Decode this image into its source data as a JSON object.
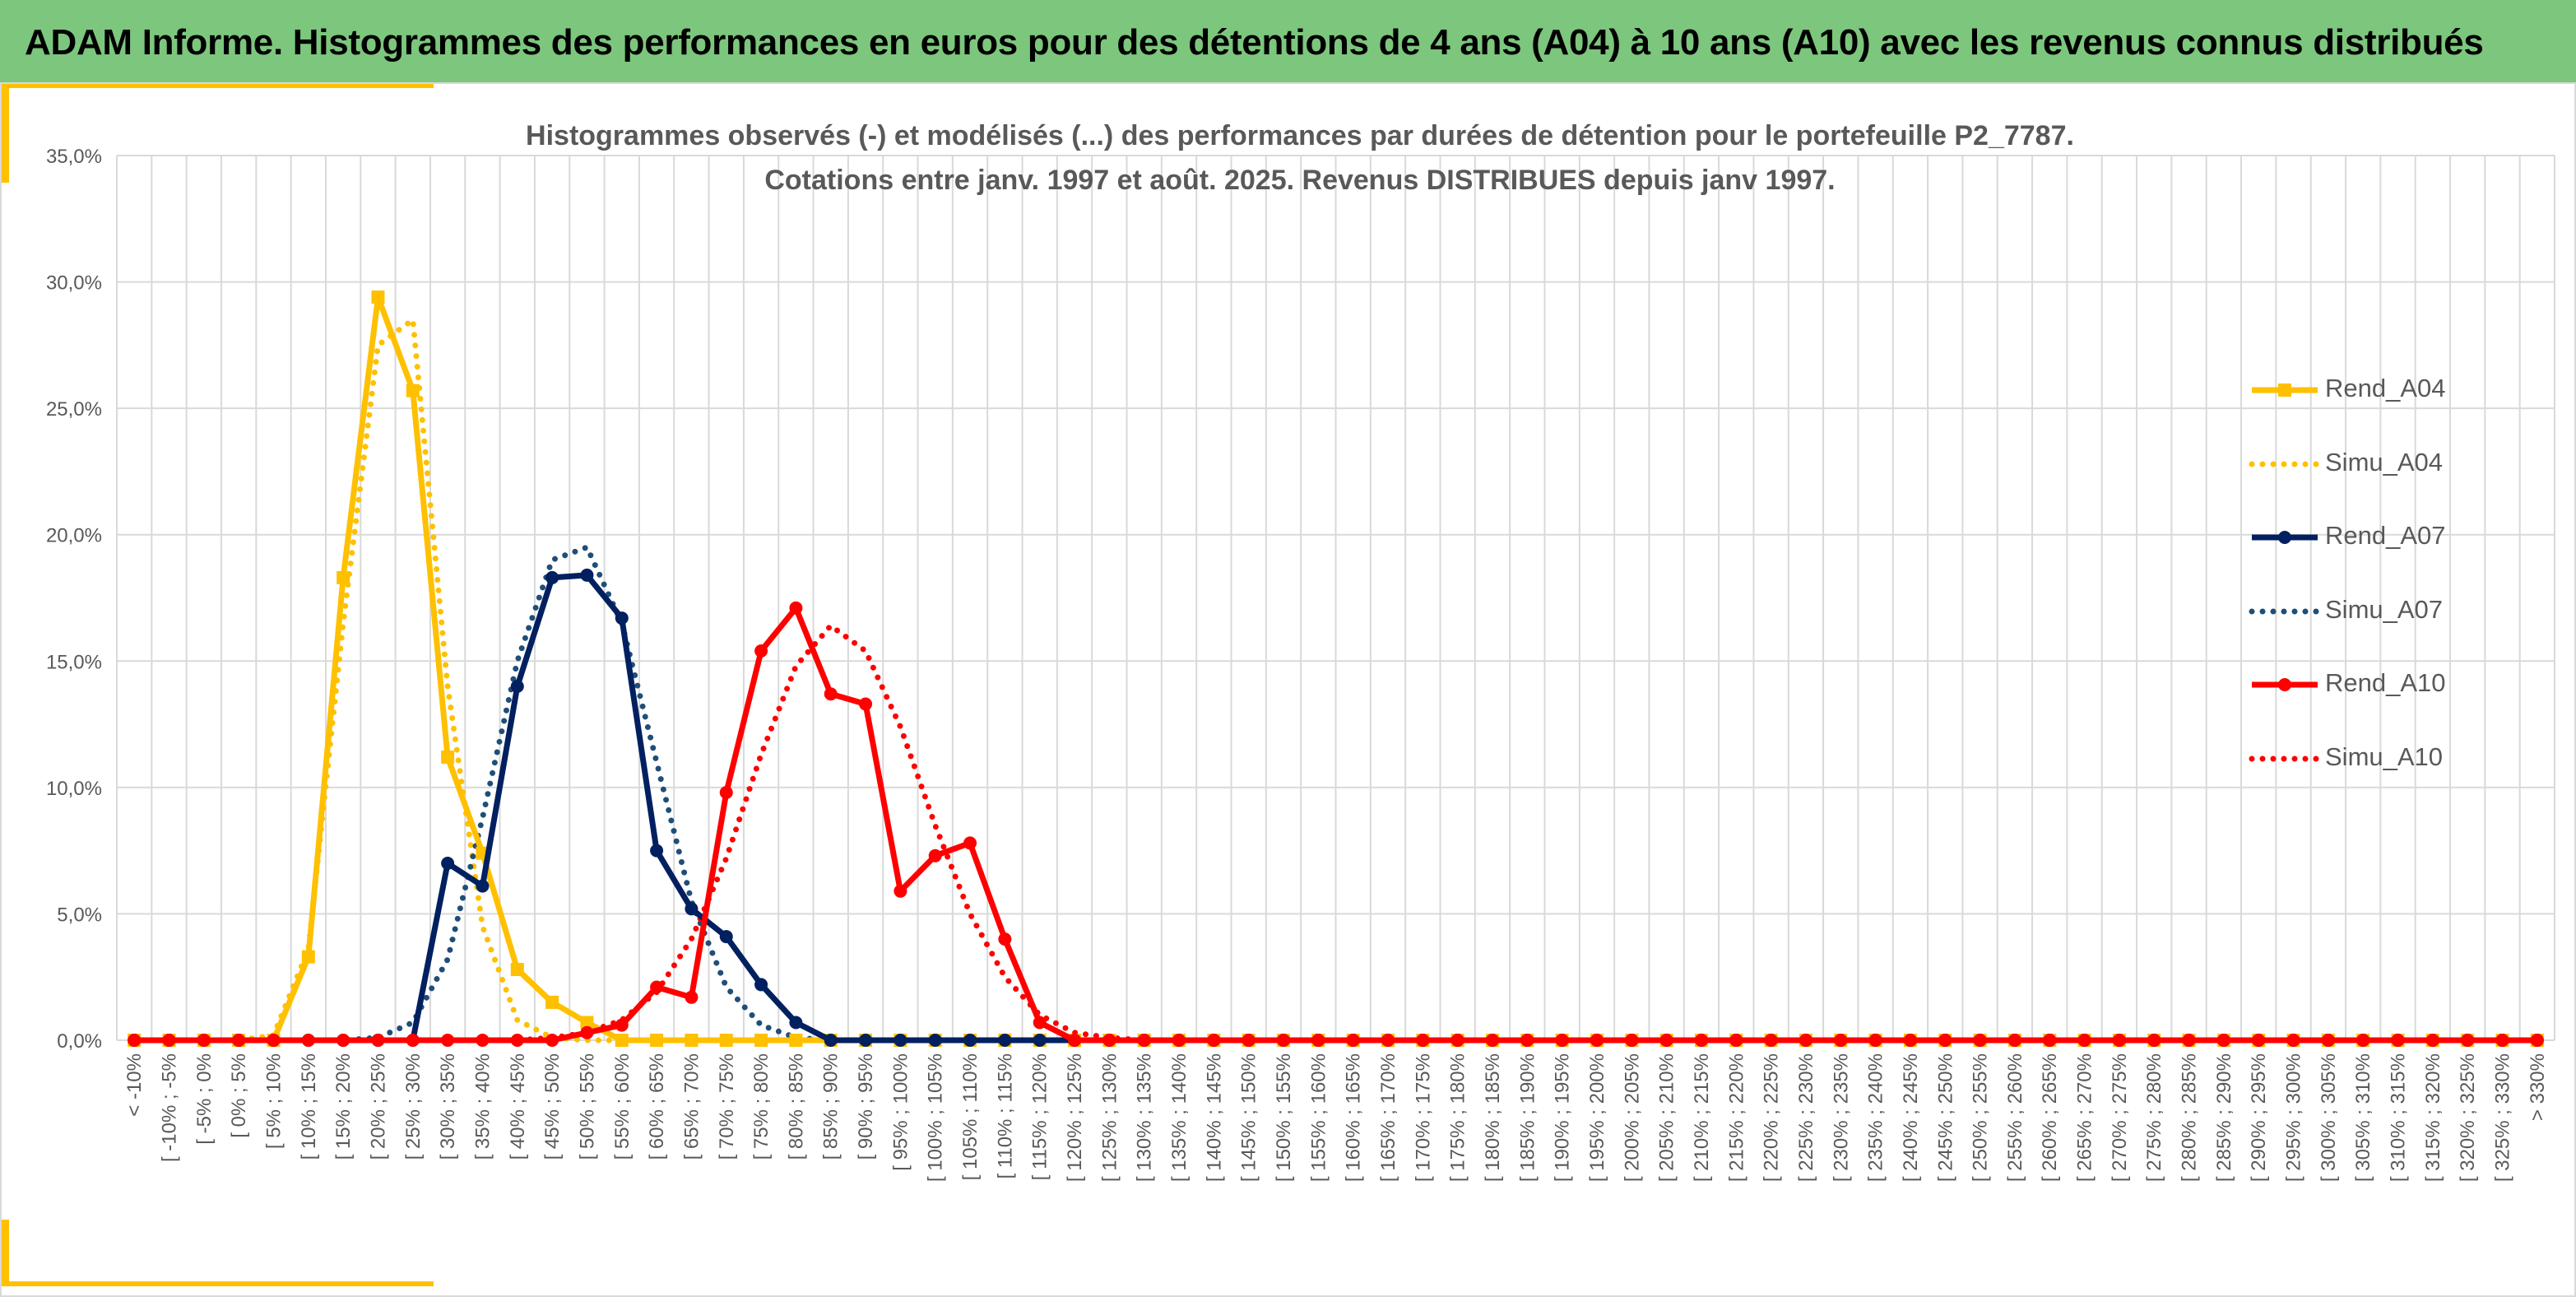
{
  "header": {
    "title": "ADAM Informe. Histogrammes des performances en euros pour des détentions de 4 ans (A04) à 10 ans (A10) avec les revenus connus distribués"
  },
  "chart_data": {
    "type": "line",
    "title": "Histogrammes observés (-) et modélisés (...) des performances par durées de détention pour le portefeuille P2_7787.",
    "subtitle": "Cotations entre janv. 1997 et août. 2025. Revenus DISTRIBUES depuis janv 1997.",
    "xlabel": "",
    "ylabel": "",
    "ylim": [
      0,
      35
    ],
    "yticks": [
      "0,0%",
      "5,0%",
      "10,0%",
      "15,0%",
      "20,0%",
      "25,0%",
      "30,0%",
      "35,0%"
    ],
    "grid": true,
    "legend_position": "right",
    "categories": [
      "< -10%",
      "[ -10% ; -5%",
      "[ -5% ; 0%",
      "[ 0% ; 5%",
      "[ 5% ; 10%",
      "[ 10% ; 15%",
      "[ 15% ; 20%",
      "[ 20% ; 25%",
      "[ 25% ; 30%",
      "[ 30% ; 35%",
      "[ 35% ; 40%",
      "[ 40% ; 45%",
      "[ 45% ; 50%",
      "[ 50% ; 55%",
      "[ 55% ; 60%",
      "[ 60% ; 65%",
      "[ 65% ; 70%",
      "[ 70% ; 75%",
      "[ 75% ; 80%",
      "[ 80% ; 85%",
      "[ 85% ; 90%",
      "[ 90% ; 95%",
      "[ 95% ; 100%",
      "[ 100% ; 105%",
      "[ 105% ; 110%",
      "[ 110% ; 115%",
      "[ 115% ; 120%",
      "[ 120% ; 125%",
      "[ 125% ; 130%",
      "[ 130% ; 135%",
      "[ 135% ; 140%",
      "[ 140% ; 145%",
      "[ 145% ; 150%",
      "[ 150% ; 155%",
      "[ 155% ; 160%",
      "[ 160% ; 165%",
      "[ 165% ; 170%",
      "[ 170% ; 175%",
      "[ 175% ; 180%",
      "[ 180% ; 185%",
      "[ 185% ; 190%",
      "[ 190% ; 195%",
      "[ 195% ; 200%",
      "[ 200% ; 205%",
      "[ 205% ; 210%",
      "[ 210% ; 215%",
      "[ 215% ; 220%",
      "[ 220% ; 225%",
      "[ 225% ; 230%",
      "[ 230% ; 235%",
      "[ 235% ; 240%",
      "[ 240% ; 245%",
      "[ 245% ; 250%",
      "[ 250% ; 255%",
      "[ 255% ; 260%",
      "[ 260% ; 265%",
      "[ 265% ; 270%",
      "[ 270% ; 275%",
      "[ 275% ; 280%",
      "[ 280% ; 285%",
      "[ 285% ; 290%",
      "[ 290% ; 295%",
      "[ 295% ; 300%",
      "[ 300% ; 305%",
      "[ 305% ; 310%",
      "[ 310% ; 315%",
      "[ 315% ; 320%",
      "[ 320% ; 325%",
      "[ 325% ; 330%",
      "> 330%"
    ],
    "series": [
      {
        "name": "Rend_A04",
        "color": "#ffc000",
        "style": "solid",
        "marker": "square",
        "values": [
          0,
          0,
          0,
          0,
          0,
          3.3,
          18.3,
          29.4,
          25.7,
          11.2,
          7.4,
          2.8,
          1.5,
          0.7,
          0,
          0,
          0,
          0,
          0,
          0,
          0,
          0,
          0,
          0,
          0,
          0,
          0,
          0,
          0,
          0,
          0,
          0,
          0,
          0,
          0,
          0,
          0,
          0,
          0,
          0,
          0,
          0,
          0,
          0,
          0,
          0,
          0,
          0,
          0,
          0,
          0,
          0,
          0,
          0,
          0,
          0,
          0,
          0,
          0,
          0,
          0,
          0,
          0,
          0,
          0,
          0,
          0,
          0,
          0,
          0
        ]
      },
      {
        "name": "Simu_A04",
        "color": "#ffc000",
        "style": "dotted",
        "marker": "none",
        "values": [
          0,
          0,
          0,
          0,
          0.2,
          3.6,
          16.5,
          27.5,
          28.5,
          14,
          4.5,
          0.8,
          0.1,
          0,
          0,
          0,
          0,
          0,
          0,
          0,
          0,
          0,
          0,
          0,
          0,
          0,
          0,
          0,
          0,
          0,
          0,
          0,
          0,
          0,
          0,
          0,
          0,
          0,
          0,
          0,
          0,
          0,
          0,
          0,
          0,
          0,
          0,
          0,
          0,
          0,
          0,
          0,
          0,
          0,
          0,
          0,
          0,
          0,
          0,
          0,
          0,
          0,
          0,
          0,
          0,
          0,
          0,
          0,
          0,
          0
        ]
      },
      {
        "name": "Rend_A07",
        "color": "#002060",
        "style": "solid",
        "marker": "circle",
        "values": [
          0,
          0,
          0,
          0,
          0,
          0,
          0,
          0,
          0,
          7,
          6.1,
          14,
          18.3,
          18.4,
          16.7,
          7.5,
          5.2,
          4.1,
          2.2,
          0.7,
          0,
          0,
          0,
          0,
          0,
          0,
          0,
          0,
          0,
          0,
          0,
          0,
          0,
          0,
          0,
          0,
          0,
          0,
          0,
          0,
          0,
          0,
          0,
          0,
          0,
          0,
          0,
          0,
          0,
          0,
          0,
          0,
          0,
          0,
          0,
          0,
          0,
          0,
          0,
          0,
          0,
          0,
          0,
          0,
          0,
          0,
          0,
          0,
          0,
          0
        ]
      },
      {
        "name": "Simu_A07",
        "color": "#1f4e79",
        "style": "dotted",
        "marker": "none",
        "values": [
          0,
          0,
          0,
          0,
          0,
          0,
          0,
          0.1,
          0.7,
          3.2,
          8.8,
          15,
          19,
          19.5,
          16.5,
          11,
          5.5,
          2.1,
          0.6,
          0.1,
          0,
          0,
          0,
          0,
          0,
          0,
          0,
          0,
          0,
          0,
          0,
          0,
          0,
          0,
          0,
          0,
          0,
          0,
          0,
          0,
          0,
          0,
          0,
          0,
          0,
          0,
          0,
          0,
          0,
          0,
          0,
          0,
          0,
          0,
          0,
          0,
          0,
          0,
          0,
          0,
          0,
          0,
          0,
          0,
          0,
          0,
          0,
          0,
          0,
          0
        ]
      },
      {
        "name": "Rend_A10",
        "color": "#ff0000",
        "style": "solid",
        "marker": "circle",
        "values": [
          0,
          0,
          0,
          0,
          0,
          0,
          0,
          0,
          0,
          0,
          0,
          0,
          0,
          0.3,
          0.6,
          2.1,
          1.7,
          9.8,
          15.4,
          17.1,
          13.7,
          13.3,
          5.9,
          7.3,
          7.8,
          4,
          0.7,
          0,
          0,
          0,
          0,
          0,
          0,
          0,
          0,
          0,
          0,
          0,
          0,
          0,
          0,
          0,
          0,
          0,
          0,
          0,
          0,
          0,
          0,
          0,
          0,
          0,
          0,
          0,
          0,
          0,
          0,
          0,
          0,
          0,
          0,
          0,
          0,
          0,
          0,
          0,
          0,
          0,
          0,
          0
        ]
      },
      {
        "name": "Simu_A10",
        "color": "#ff0000",
        "style": "dotted",
        "marker": "none",
        "values": [
          0,
          0,
          0,
          0,
          0,
          0,
          0,
          0,
          0,
          0,
          0,
          0,
          0.1,
          0.3,
          0.8,
          1.9,
          4,
          7.2,
          11.3,
          14.8,
          16.4,
          15.4,
          12.4,
          8.5,
          5,
          2.5,
          1,
          0.3,
          0.1,
          0,
          0,
          0,
          0,
          0,
          0,
          0,
          0,
          0,
          0,
          0,
          0,
          0,
          0,
          0,
          0,
          0,
          0,
          0,
          0,
          0,
          0,
          0,
          0,
          0,
          0,
          0,
          0,
          0,
          0,
          0,
          0,
          0,
          0,
          0,
          0,
          0,
          0,
          0,
          0,
          0
        ]
      }
    ]
  }
}
